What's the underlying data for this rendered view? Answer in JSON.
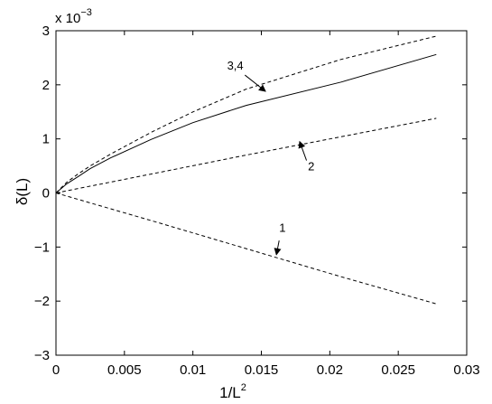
{
  "chart_data": {
    "type": "line",
    "title": "",
    "xlabel": "1/L",
    "xlabel_sup": "2",
    "ylabel": "δ(L)",
    "y_multiplier_base": "x 10",
    "y_multiplier_exp": "−3",
    "xlim": [
      0,
      0.03
    ],
    "ylim": [
      -3,
      3
    ],
    "grid": false,
    "xticks": [
      {
        "value": 0,
        "label": "0"
      },
      {
        "value": 0.005,
        "label": "0.005"
      },
      {
        "value": 0.01,
        "label": "0.01"
      },
      {
        "value": 0.015,
        "label": "0.015"
      },
      {
        "value": 0.02,
        "label": "0.02"
      },
      {
        "value": 0.025,
        "label": "0.025"
      },
      {
        "value": 0.03,
        "label": "0.03"
      }
    ],
    "yticks": [
      {
        "value": -3,
        "label": "−3"
      },
      {
        "value": -2,
        "label": "−2"
      },
      {
        "value": -1,
        "label": "−1"
      },
      {
        "value": 0,
        "label": "0"
      },
      {
        "value": 1,
        "label": "1"
      },
      {
        "value": 2,
        "label": "2"
      },
      {
        "value": 3,
        "label": "3"
      }
    ],
    "series": [
      {
        "id": "curve-1",
        "style": "dashed",
        "x": [
          0,
          0.00694,
          0.01389,
          0.02083,
          0.02778
        ],
        "y": [
          0,
          -0.51,
          -1.03,
          -1.55,
          -2.05
        ]
      },
      {
        "id": "curve-2",
        "style": "dashed",
        "x": [
          0,
          0.00694,
          0.01389,
          0.02083,
          0.02778
        ],
        "y": [
          0,
          0.35,
          0.7,
          1.04,
          1.38
        ]
      },
      {
        "id": "curve-3",
        "style": "dashed",
        "x": [
          0,
          0.0008,
          0.0016,
          0.0025,
          0.004,
          0.00694,
          0.01,
          0.01389,
          0.02083,
          0.02778
        ],
        "y": [
          0,
          0.2,
          0.35,
          0.5,
          0.72,
          1.12,
          1.5,
          1.92,
          2.47,
          2.9
        ]
      },
      {
        "id": "curve-4",
        "style": "solid",
        "x": [
          0,
          0.0008,
          0.0016,
          0.0025,
          0.004,
          0.00694,
          0.01,
          0.01389,
          0.02083,
          0.02778
        ],
        "y": [
          0,
          0.17,
          0.3,
          0.45,
          0.65,
          0.99,
          1.3,
          1.62,
          2.05,
          2.56
        ]
      }
    ],
    "annotations": [
      {
        "text": "3,4",
        "text_x": 0.0125,
        "text_y": 2.28,
        "arrow_from": [
          0.0138,
          2.18
        ],
        "arrow_to": [
          0.0153,
          1.88
        ]
      },
      {
        "text": "2",
        "text_x": 0.0184,
        "text_y": 0.42,
        "arrow_from": [
          0.0183,
          0.6
        ],
        "arrow_to": [
          0.0178,
          0.95
        ]
      },
      {
        "text": "1",
        "text_x": 0.0163,
        "text_y": -0.72,
        "arrow_from": [
          0.0163,
          -0.88
        ],
        "arrow_to": [
          0.0161,
          -1.14
        ]
      }
    ]
  }
}
